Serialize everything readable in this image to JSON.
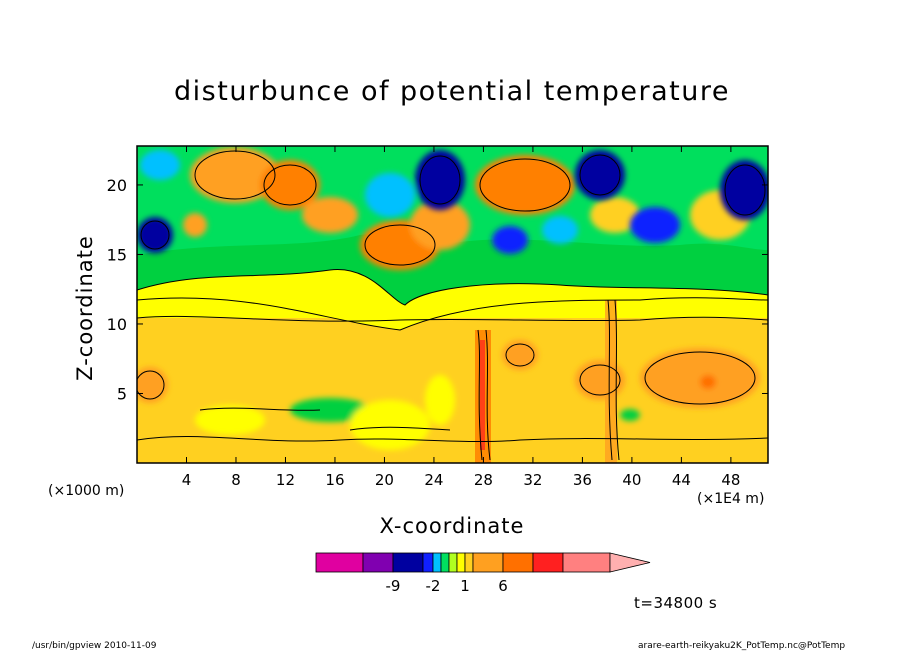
{
  "chart_data": {
    "type": "heatmap",
    "title": "disturbunce of potential temperature",
    "xlabel": "X-coordinate",
    "ylabel": "Z-coordinate",
    "x_unit_label": "(×1000 m)",
    "x_scale_label": "(×1E4 m)",
    "xlim": [
      0,
      51
    ],
    "ylim": [
      0,
      22.8
    ],
    "x_ticks": [
      4,
      8,
      12,
      16,
      20,
      24,
      28,
      32,
      36,
      40,
      44,
      48
    ],
    "x_tick_labels": [
      "4",
      "8",
      "12",
      "16",
      "20",
      "24",
      "28",
      "32",
      "36",
      "40",
      "44",
      "48"
    ],
    "y_ticks": [
      5,
      10,
      15,
      20
    ],
    "y_tick_labels": [
      "5",
      "10",
      "15",
      "20"
    ],
    "colorbar": {
      "tick_labels": [
        "-9",
        "-2",
        "1",
        "6"
      ],
      "colors": [
        "#e000a0",
        "#8000b0",
        "#0000a0",
        "#1020ff",
        "#00c0ff",
        "#00e060",
        "#b0ff20",
        "#ffff00",
        "#ffd020",
        "#ffa020",
        "#ff7000",
        "#ff2020",
        "#ff8080",
        "#ffb0b0"
      ]
    },
    "time_label": "t=34800 s"
  },
  "footer": {
    "left": "/usr/bin/gpview 2010-11-09",
    "right": "arare-earth-reikyaku2K_PotTemp.nc@PotTemp"
  }
}
